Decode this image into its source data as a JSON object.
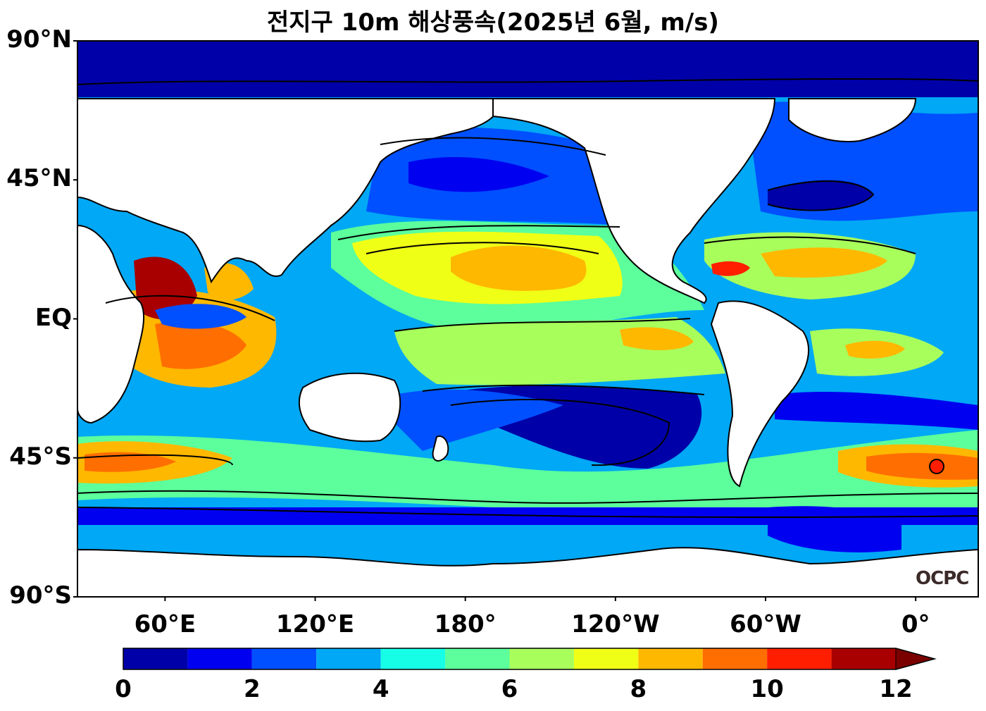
{
  "title": "전지구 10m 해상풍속(2025년 6월, m/s)",
  "lat_labels": [
    "90°N",
    "45°N",
    "EQ",
    "45°S",
    "90°S"
  ],
  "lat_values": [
    90,
    45,
    0,
    -45,
    -90
  ],
  "lon_labels": [
    "60°E",
    "120°E",
    "180°",
    "120°W",
    "60°W",
    "0°"
  ],
  "lon_values": [
    60,
    120,
    180,
    240,
    300,
    360
  ],
  "map_extent": {
    "lon_min": 25,
    "lon_max": 385,
    "lat_min": -90,
    "lat_max": 90
  },
  "colorbar": {
    "ticks": [
      "0",
      "2",
      "4",
      "6",
      "8",
      "10",
      "12"
    ],
    "tick_values": [
      0,
      2,
      4,
      6,
      8,
      10,
      12
    ],
    "levels": [
      0,
      1,
      2,
      3,
      4,
      5,
      6,
      7,
      8,
      9,
      10,
      11,
      12
    ],
    "colors": [
      "#0000a8",
      "#0000f0",
      "#0050ff",
      "#00a8f5",
      "#16ffe6",
      "#5cff9c",
      "#a8ff5c",
      "#f0ff16",
      "#ffb800",
      "#ff6e00",
      "#ff1e00",
      "#a80000"
    ],
    "extend_color": "#7a0000",
    "extend": "max"
  },
  "logo": "OCPC",
  "colors": {
    "land": "#ffffff",
    "coastline": "#000000"
  }
}
